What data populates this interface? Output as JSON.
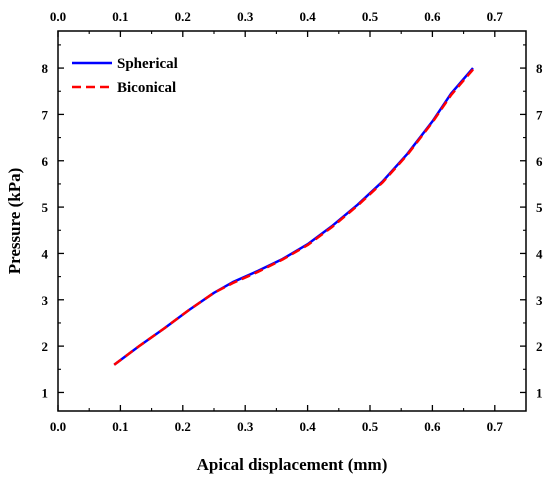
{
  "chart_data": {
    "type": "line",
    "title": "",
    "xlabel": "Apical displacement (mm)",
    "ylabel": "Pressure (kPa)",
    "xlim": [
      0.0,
      0.75
    ],
    "ylim": [
      0.6,
      8.8
    ],
    "xticks": [
      "0.0",
      "0.1",
      "0.2",
      "0.3",
      "0.4",
      "0.5",
      "0.6",
      "0.7"
    ],
    "yticks": [
      "1",
      "2",
      "3",
      "4",
      "5",
      "6",
      "7",
      "8"
    ],
    "top_axis_ticks": [
      "0.0",
      "0.1",
      "0.2",
      "0.3",
      "0.4",
      "0.5",
      "0.6",
      "0.7"
    ],
    "right_axis_ticks": [
      "1",
      "2",
      "3",
      "4",
      "5",
      "6",
      "7",
      "8"
    ],
    "grid": false,
    "legend_position": "top-left",
    "series": [
      {
        "name": "Spherical",
        "color": "#0000ff",
        "style": "solid",
        "x": [
          0.09,
          0.13,
          0.17,
          0.21,
          0.25,
          0.28,
          0.32,
          0.36,
          0.4,
          0.44,
          0.48,
          0.52,
          0.56,
          0.6,
          0.63,
          0.665
        ],
        "y": [
          1.6,
          2.0,
          2.38,
          2.78,
          3.15,
          3.38,
          3.62,
          3.88,
          4.2,
          4.6,
          5.05,
          5.55,
          6.15,
          6.85,
          7.45,
          8.0
        ]
      },
      {
        "name": "Biconical",
        "color": "#ff0000",
        "style": "dashed",
        "x": [
          0.09,
          0.13,
          0.17,
          0.21,
          0.25,
          0.28,
          0.32,
          0.36,
          0.4,
          0.44,
          0.48,
          0.52,
          0.56,
          0.6,
          0.63,
          0.665
        ],
        "y": [
          1.6,
          2.0,
          2.38,
          2.78,
          3.15,
          3.36,
          3.6,
          3.87,
          4.18,
          4.58,
          5.03,
          5.53,
          6.13,
          6.83,
          7.42,
          7.97
        ]
      }
    ]
  }
}
